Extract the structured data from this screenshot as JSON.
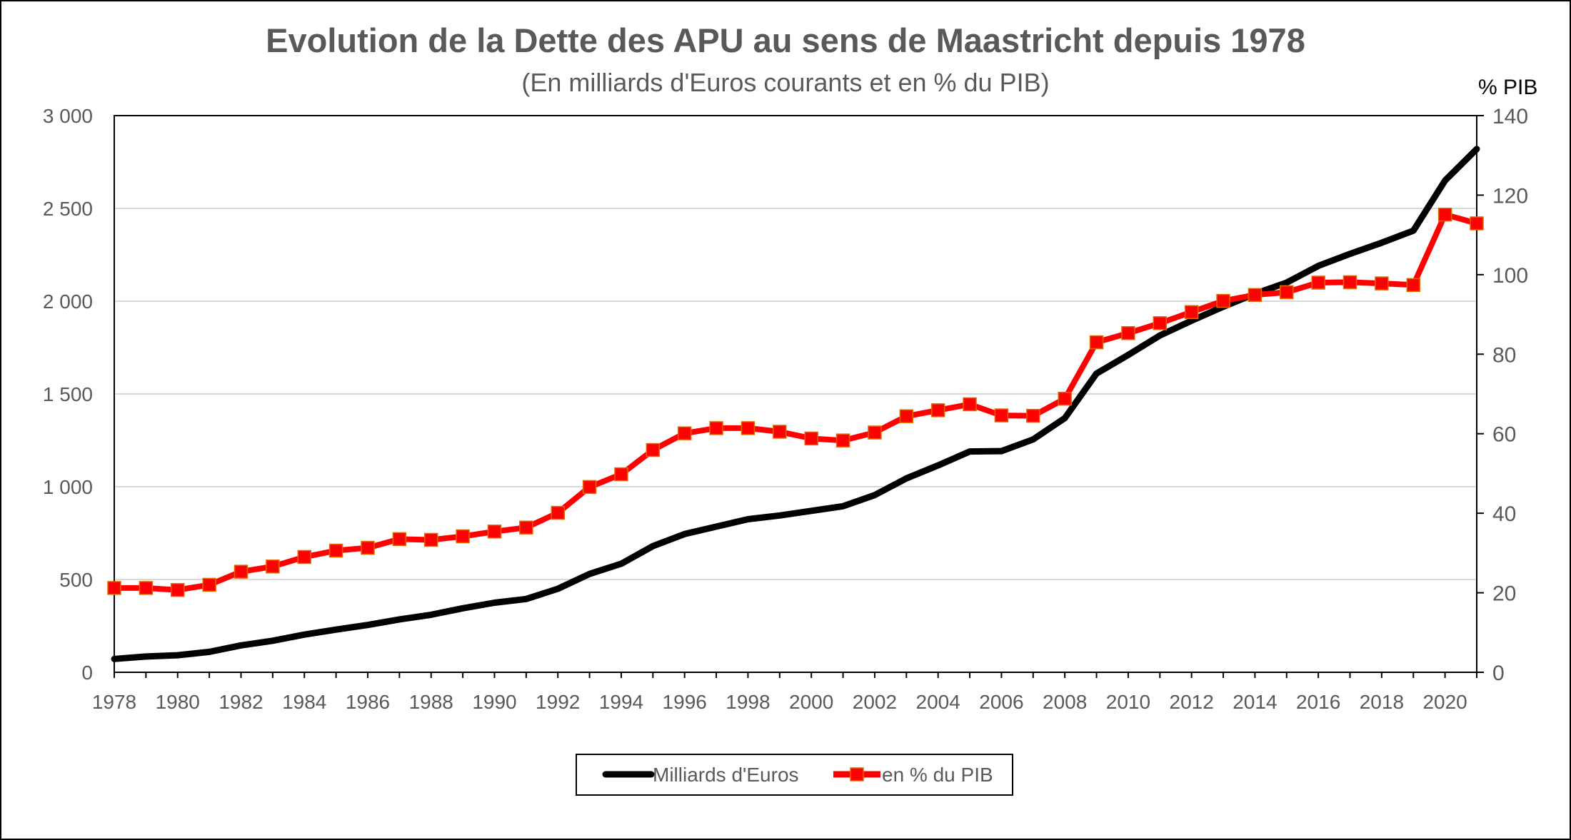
{
  "chart_data": {
    "type": "line",
    "title": "Evolution de la Dette des APU au sens de Maastricht depuis 1978",
    "subtitle": "(En milliards d'Euros courants et en % du PIB)",
    "y2_unit_label": "% PIB",
    "x": [
      1978,
      1979,
      1980,
      1981,
      1982,
      1983,
      1984,
      1985,
      1986,
      1987,
      1988,
      1989,
      1990,
      1991,
      1992,
      1993,
      1994,
      1995,
      1996,
      1997,
      1998,
      1999,
      2000,
      2001,
      2002,
      2003,
      2004,
      2005,
      2006,
      2007,
      2008,
      2009,
      2010,
      2011,
      2012,
      2013,
      2014,
      2015,
      2016,
      2017,
      2018,
      2019,
      2020,
      2021
    ],
    "x_tick_labels": [
      "1978",
      "1980",
      "1982",
      "1984",
      "1986",
      "1988",
      "1990",
      "1992",
      "1994",
      "1996",
      "1998",
      "2000",
      "2002",
      "2004",
      "2006",
      "2008",
      "2010",
      "2012",
      "2014",
      "2016",
      "2018",
      "2020"
    ],
    "ylim": [
      0,
      3000
    ],
    "y_tick_labels": [
      "0",
      "500",
      "1 000",
      "1 500",
      "2 000",
      "2 500",
      "3 000"
    ],
    "y2lim": [
      0,
      140
    ],
    "y2_tick_labels": [
      "0",
      "20",
      "40",
      "60",
      "80",
      "100",
      "120",
      "140"
    ],
    "grid": "horizontal",
    "legend_position": "bottom",
    "series": [
      {
        "name": "Milliards d'Euros",
        "axis": "left",
        "color": "#000000",
        "marker": "none",
        "values": [
          72,
          85,
          92,
          110,
          145,
          170,
          203,
          230,
          255,
          285,
          310,
          345,
          375,
          395,
          450,
          530,
          585,
          680,
          745,
          785,
          825,
          845,
          870,
          895,
          955,
          1045,
          1115,
          1190,
          1192,
          1255,
          1370,
          1610,
          1710,
          1815,
          1895,
          1970,
          2040,
          2100,
          2190,
          2255,
          2315,
          2380,
          2650,
          2820
        ]
      },
      {
        "name": "en % du PIB",
        "axis": "right",
        "color": "#ff0000",
        "marker": "square",
        "marker_color": "#ff0000",
        "values": [
          21.2,
          21.2,
          20.7,
          22.0,
          25.3,
          26.6,
          29.0,
          30.6,
          31.3,
          33.5,
          33.3,
          34.2,
          35.4,
          36.4,
          40.1,
          46.6,
          49.8,
          55.9,
          60.1,
          61.4,
          61.4,
          60.5,
          58.8,
          58.3,
          60.3,
          64.4,
          65.9,
          67.4,
          64.6,
          64.5,
          68.8,
          83.0,
          85.3,
          87.8,
          90.6,
          93.4,
          94.9,
          95.6,
          98.0,
          98.1,
          97.8,
          97.4,
          115.1,
          112.9
        ]
      }
    ]
  }
}
